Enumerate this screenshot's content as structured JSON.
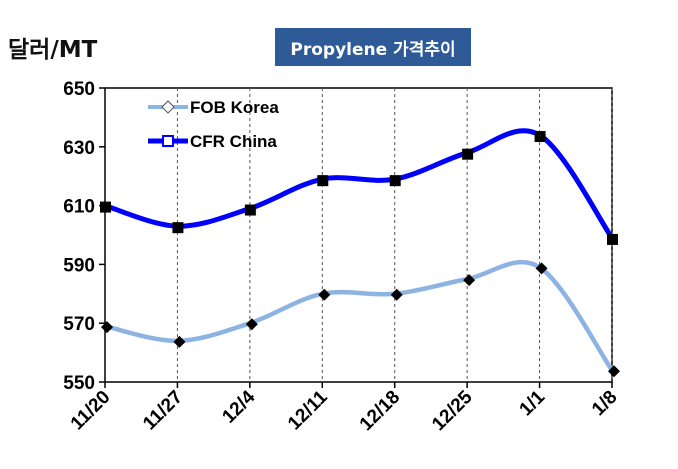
{
  "chart_data": {
    "type": "line",
    "title": "Propylene 가격추이",
    "ylabel": "달러/MT",
    "xlabel": "",
    "categories": [
      "11/20",
      "11/27",
      "12/4",
      "12/11",
      "12/18",
      "12/25",
      "1/1",
      "1/8"
    ],
    "ylim": [
      550,
      650
    ],
    "yticks": [
      550,
      570,
      590,
      610,
      630,
      650
    ],
    "grid": "vertical",
    "legend": "top-left",
    "series": [
      {
        "name": "FOB Korea",
        "values": [
          569,
          564,
          570,
          580,
          580,
          585,
          589,
          554
        ],
        "color": "#8db3e2"
      },
      {
        "name": "CFR China",
        "values": [
          610,
          603,
          609,
          619,
          619,
          628,
          634,
          599
        ],
        "color": "#0000ff"
      }
    ]
  }
}
